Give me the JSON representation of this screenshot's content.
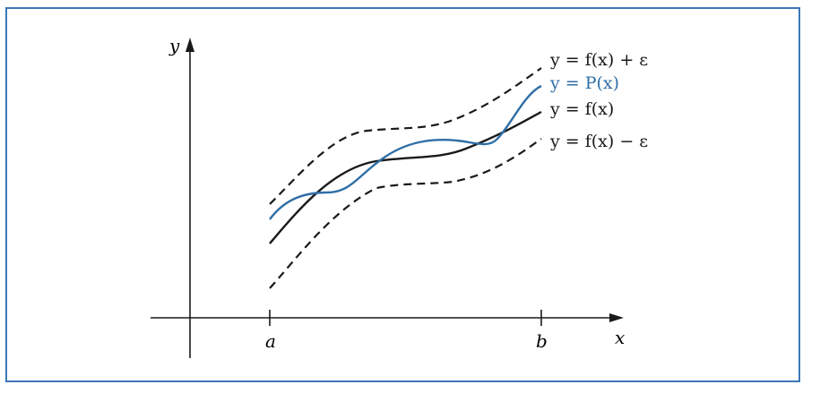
{
  "axes": {
    "x_label": "x",
    "y_label": "y",
    "tick_a": "a",
    "tick_b": "b"
  },
  "curve_labels": {
    "upper": "y = f(x) + ε",
    "poly": "y = P(x)",
    "f": "y = f(x)",
    "lower": "y = f(x) − ε"
  },
  "colors": {
    "frame": "#3d78b9",
    "poly": "#2f6ea6",
    "ink": "#1a1a1a"
  }
}
